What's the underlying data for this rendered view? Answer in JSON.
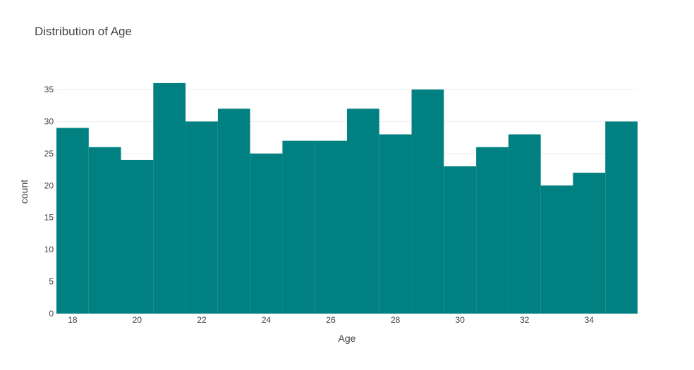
{
  "chart_data": {
    "type": "bar",
    "title": "Distribution of Age",
    "xlabel": "Age",
    "ylabel": "count",
    "categories": [
      "18",
      "19",
      "20",
      "21",
      "22",
      "23",
      "24",
      "25",
      "26",
      "27",
      "28",
      "29",
      "30",
      "31",
      "32",
      "33",
      "34",
      "35"
    ],
    "values": [
      29,
      26,
      24,
      36,
      30,
      32,
      25,
      27,
      27,
      32,
      28,
      35,
      23,
      26,
      28,
      20,
      22,
      30
    ],
    "x_ticks": [
      18,
      20,
      22,
      24,
      26,
      28,
      30,
      32,
      34
    ],
    "y_ticks": [
      0,
      5,
      10,
      15,
      20,
      25,
      30,
      35
    ],
    "xlim": [
      17.5,
      35.5
    ],
    "ylim": [
      0,
      35
    ],
    "grid": true,
    "bar_color": "#008080",
    "bargap": 0
  }
}
